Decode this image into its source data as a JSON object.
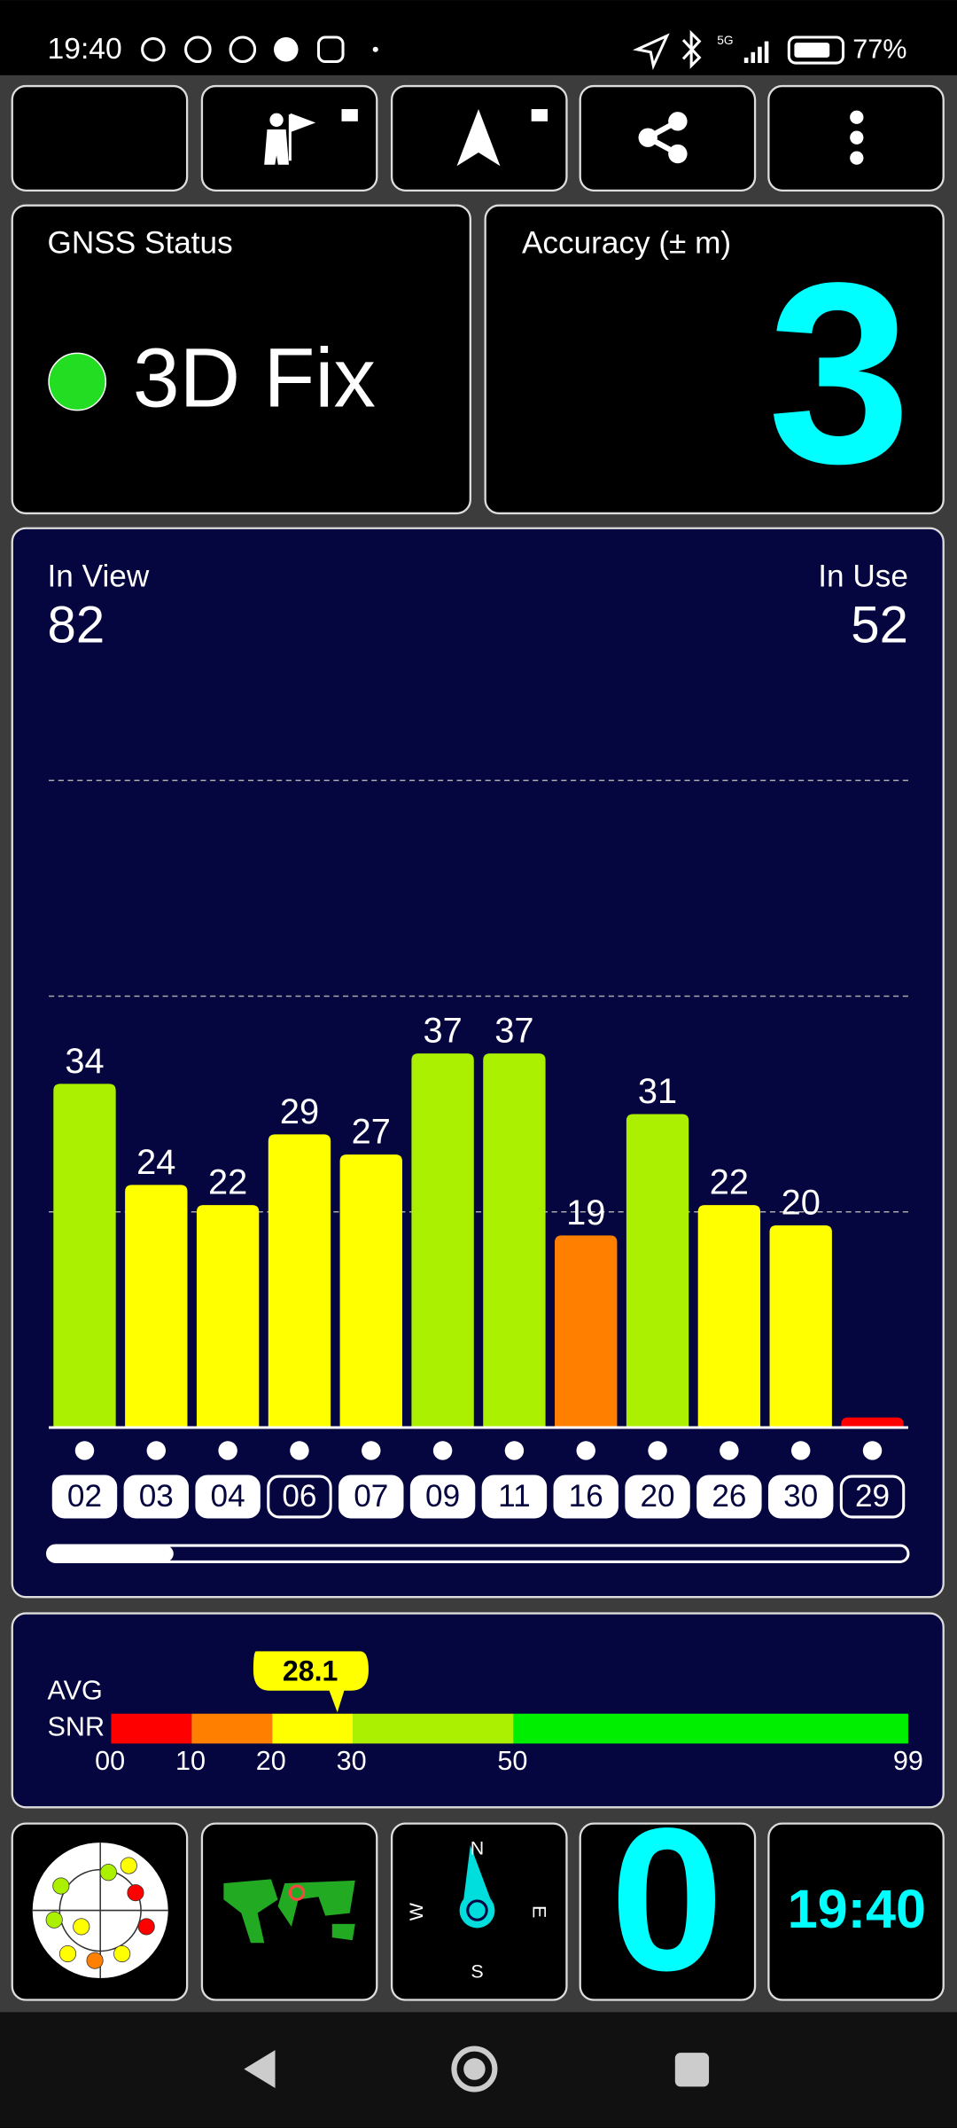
{
  "status_bar": {
    "time": "19:40",
    "network": "5G",
    "battery": "77%"
  },
  "gnss_status": {
    "title": "GNSS Status",
    "value": "3D Fix"
  },
  "accuracy": {
    "title": "Accuracy (± m)",
    "value": "3"
  },
  "satellites": {
    "in_view_label": "In View",
    "in_view": 82,
    "in_use_label": "In Use",
    "in_use": 52
  },
  "chart_data": {
    "type": "bar",
    "categories": [
      "02",
      "03",
      "04",
      "06",
      "07",
      "09",
      "11",
      "16",
      "20",
      "26",
      "30",
      "29"
    ],
    "values": [
      34,
      24,
      22,
      29,
      27,
      37,
      37,
      19,
      31,
      22,
      20,
      1
    ],
    "value_labels": [
      "34",
      "24",
      "22",
      "29",
      "27",
      "37",
      "37",
      "19",
      "31",
      "22",
      "20",
      null
    ],
    "colors": [
      "#aaf000",
      "#ffff00",
      "#ffff00",
      "#ffff00",
      "#ffff00",
      "#aaf000",
      "#aaf000",
      "#ff8000",
      "#aaf000",
      "#ffff00",
      "#ffff00",
      "#ff0000"
    ],
    "in_use": [
      true,
      true,
      true,
      false,
      true,
      true,
      true,
      true,
      true,
      true,
      true,
      false
    ],
    "ylim": [
      0,
      64
    ],
    "grid": true
  },
  "snr": {
    "label_top": "AVG",
    "label_bottom": "SNR",
    "average": 28.1,
    "xlim": [
      0,
      99
    ],
    "xticks": [
      {
        "value": 0,
        "label": "00"
      },
      10,
      20,
      30,
      50,
      99
    ],
    "colors": [
      "#ff0000",
      "#ff8000",
      "#ffff00",
      "#aaf000",
      "#00ee00"
    ]
  },
  "tiles": {
    "compass": {
      "n": "N",
      "e": "E",
      "s": "S",
      "w": "W"
    },
    "speed": "0",
    "clock": "19:40"
  }
}
